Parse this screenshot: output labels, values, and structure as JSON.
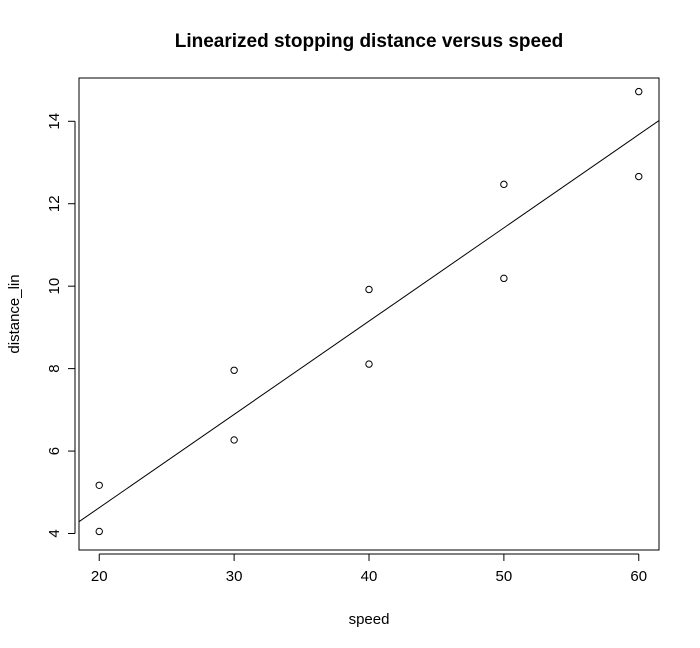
{
  "chart_data": {
    "type": "scatter",
    "title": "Linearized stopping distance versus speed",
    "xlabel": "speed",
    "ylabel": "distance_lin",
    "xlim": [
      18.5,
      61.5
    ],
    "ylim": [
      3.6,
      15.05
    ],
    "x_ticks": [
      20,
      30,
      40,
      50,
      60
    ],
    "y_ticks": [
      4,
      6,
      8,
      10,
      12,
      14
    ],
    "grid": false,
    "points": [
      {
        "x": 20,
        "y": 4.05
      },
      {
        "x": 20,
        "y": 5.17
      },
      {
        "x": 30,
        "y": 6.27
      },
      {
        "x": 30,
        "y": 7.96
      },
      {
        "x": 40,
        "y": 8.11
      },
      {
        "x": 40,
        "y": 9.92
      },
      {
        "x": 50,
        "y": 10.19
      },
      {
        "x": 50,
        "y": 12.47
      },
      {
        "x": 60,
        "y": 12.66
      },
      {
        "x": 60,
        "y": 14.72
      }
    ],
    "fit_line": {
      "intercept": 0.1,
      "slope": 0.2263
    }
  }
}
